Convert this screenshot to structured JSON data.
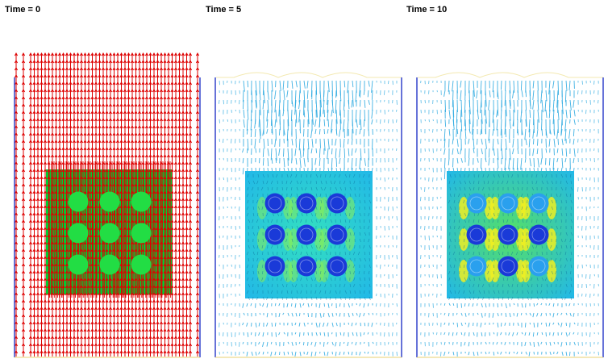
{
  "panels": [
    {
      "time_label": "Time = 0",
      "style": "initial",
      "colors": {
        "vector": "#dd0000",
        "block": "#00cc33",
        "pin": "#22dd44",
        "wall": "#3344cc"
      },
      "pin_grid": "3x3"
    },
    {
      "time_label": "Time = 5",
      "style": "developing",
      "colors": {
        "vector": "#2aa8e0",
        "block_low": "#22b8e8",
        "block_mid": "#33e0c0",
        "block_high": "#88ee55",
        "pin": "#1a3ad8",
        "wall": "#3344cc"
      },
      "pin_grid": "3x3"
    },
    {
      "time_label": "Time = 10",
      "style": "developed",
      "colors": {
        "vector": "#2aa8e0",
        "block_low": "#22b8e8",
        "block_mid": "#55e066",
        "block_high": "#eeee22",
        "pin_dark": "#1a3ad8",
        "pin_light": "#2aa0ee",
        "wall": "#3344cc"
      },
      "pin_grid": "3x3"
    }
  ]
}
